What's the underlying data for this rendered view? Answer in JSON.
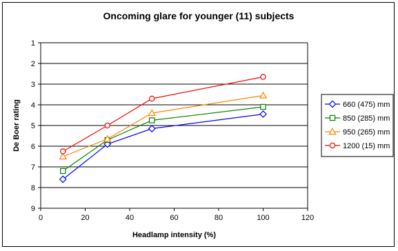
{
  "chart_data": {
    "type": "line",
    "title": "Oncoming glare for younger (11) subjects",
    "xlabel": "Headlamp intensity (%)",
    "ylabel": "De Boer rating",
    "xlim": [
      0,
      120
    ],
    "ylim": [
      1,
      9
    ],
    "y_inverted": true,
    "x_ticks": [
      0,
      20,
      40,
      60,
      80,
      100,
      120
    ],
    "y_ticks": [
      1,
      2,
      3,
      4,
      5,
      6,
      7,
      8,
      9
    ],
    "grid": "horizontal",
    "legend_position": "right",
    "plot_background": "#ffffff",
    "x": [
      10,
      30,
      50,
      100
    ],
    "series": [
      {
        "name": "660 (475) mm",
        "color": "#0000ff",
        "marker": "diamond",
        "values": [
          7.6,
          5.9,
          5.15,
          4.45
        ]
      },
      {
        "name": "850 (285) mm",
        "color": "#008000",
        "marker": "square",
        "values": [
          7.2,
          5.7,
          4.75,
          4.1
        ]
      },
      {
        "name": "950 (265) mm",
        "color": "#ff8000",
        "marker": "triangle",
        "values": [
          6.5,
          5.65,
          4.4,
          3.55
        ]
      },
      {
        "name": "1200 (15) mm",
        "color": "#ff0000",
        "marker": "circle",
        "values": [
          6.25,
          5.0,
          3.7,
          2.65
        ]
      }
    ]
  }
}
